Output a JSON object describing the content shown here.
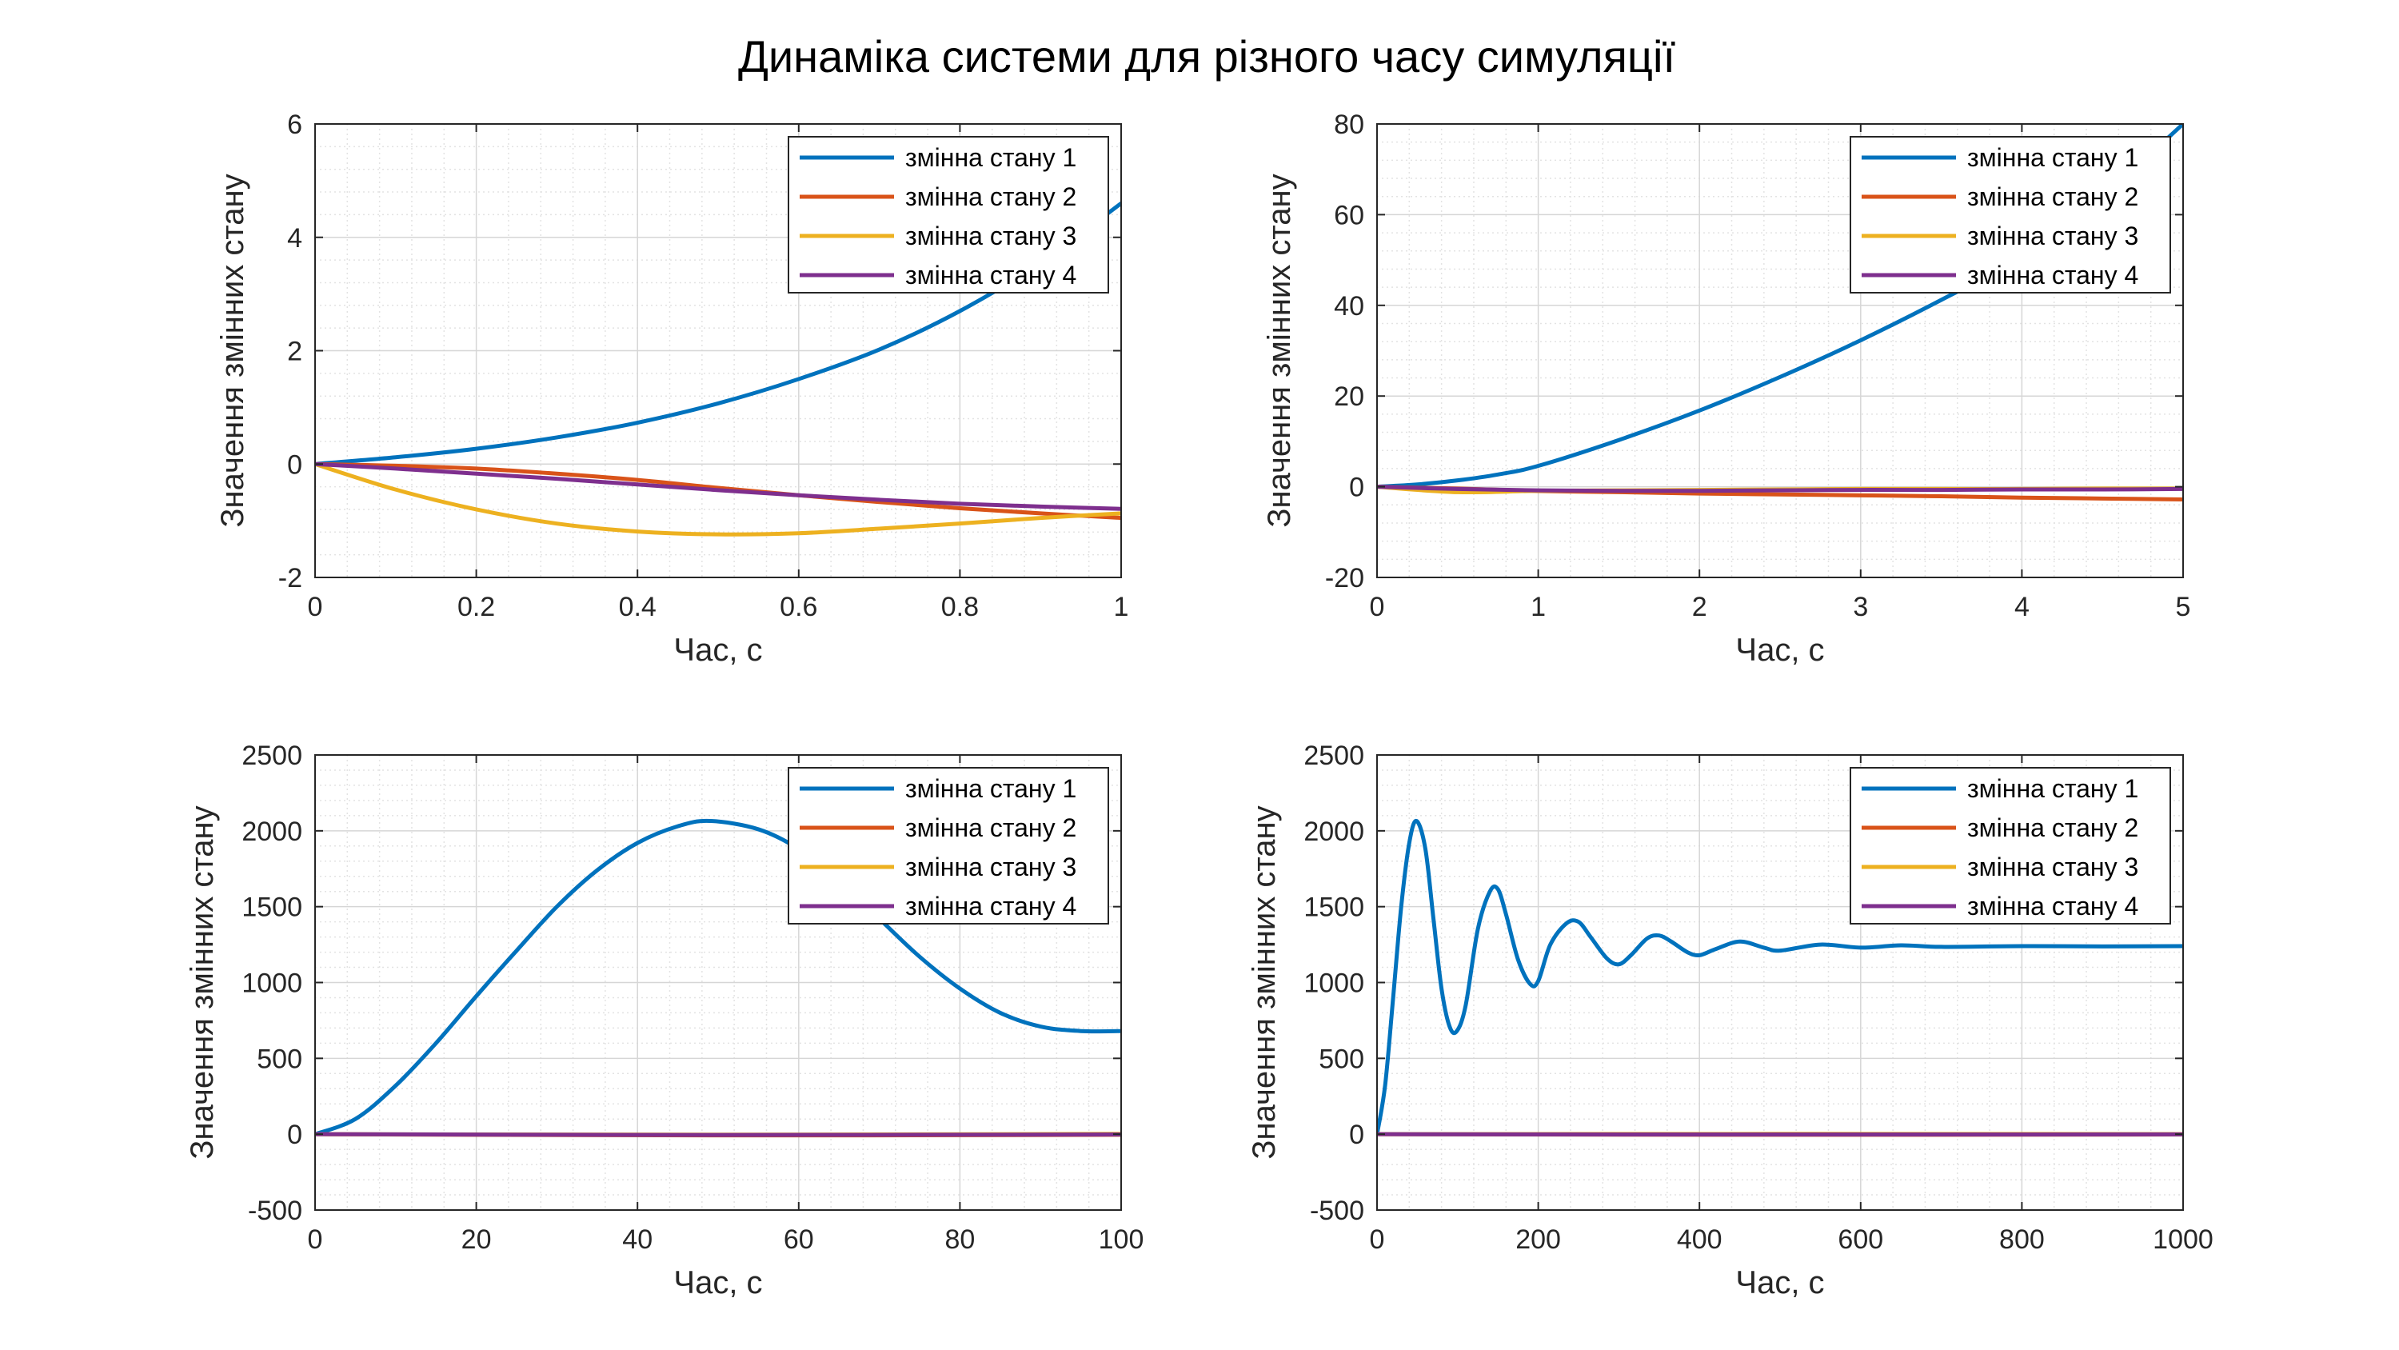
{
  "figure": {
    "title": "Динаміка системи для різного часу симуляції"
  },
  "colors": {
    "series": [
      "#0072BD",
      "#D95319",
      "#EDB120",
      "#7E2F8E"
    ]
  },
  "chart_data": [
    {
      "type": "line",
      "xlabel": "Час, с",
      "ylabel": "Значення змінних стану",
      "xlim": [
        0,
        1
      ],
      "ylim": [
        -2,
        6
      ],
      "xticks": [
        0,
        0.2,
        0.4,
        0.6,
        0.8,
        1
      ],
      "yticks": [
        -2,
        0,
        2,
        4,
        6
      ],
      "grid": true,
      "minor_grid": true,
      "legend_position": "top-right",
      "series": [
        {
          "name": "змінна стану 1",
          "x": [
            0,
            0.1,
            0.2,
            0.3,
            0.4,
            0.5,
            0.6,
            0.7,
            0.8,
            0.9,
            1.0
          ],
          "y": [
            0,
            0.12,
            0.27,
            0.47,
            0.73,
            1.07,
            1.5,
            2.02,
            2.7,
            3.55,
            4.6
          ]
        },
        {
          "name": "змінна стану 2",
          "x": [
            0,
            0.1,
            0.2,
            0.3,
            0.4,
            0.5,
            0.6,
            0.7,
            0.8,
            0.9,
            1.0
          ],
          "y": [
            0,
            -0.03,
            -0.08,
            -0.17,
            -0.28,
            -0.42,
            -0.55,
            -0.67,
            -0.78,
            -0.87,
            -0.95
          ]
        },
        {
          "name": "змінна стану 3",
          "x": [
            0,
            0.1,
            0.2,
            0.3,
            0.4,
            0.5,
            0.6,
            0.7,
            0.8,
            0.9,
            1.0
          ],
          "y": [
            0,
            -0.45,
            -0.8,
            -1.05,
            -1.19,
            -1.24,
            -1.22,
            -1.14,
            -1.05,
            -0.95,
            -0.87
          ]
        },
        {
          "name": "змінна стану 4",
          "x": [
            0,
            0.1,
            0.2,
            0.3,
            0.4,
            0.5,
            0.6,
            0.7,
            0.8,
            0.9,
            1.0
          ],
          "y": [
            0,
            -0.08,
            -0.17,
            -0.26,
            -0.36,
            -0.46,
            -0.55,
            -0.63,
            -0.7,
            -0.75,
            -0.79
          ]
        }
      ]
    },
    {
      "type": "line",
      "xlabel": "Час, с",
      "ylabel": "Значення змінних стану",
      "xlim": [
        0,
        5
      ],
      "ylim": [
        -20,
        80
      ],
      "xticks": [
        0,
        1,
        2,
        3,
        4,
        5
      ],
      "yticks": [
        -20,
        0,
        20,
        40,
        60,
        80
      ],
      "grid": true,
      "minor_grid": true,
      "legend_position": "top-right",
      "series": [
        {
          "name": "змінна стану 1",
          "x": [
            0,
            0.25,
            0.5,
            0.75,
            1,
            1.5,
            2,
            2.5,
            3,
            3.5,
            4,
            4.5,
            5
          ],
          "y": [
            0,
            0.5,
            1.4,
            2.7,
            4.6,
            10.3,
            16.8,
            24.2,
            32.3,
            41.2,
            50.8,
            64.0,
            80.0
          ]
        },
        {
          "name": "змінна стану 2",
          "x": [
            0,
            0.5,
            1,
            1.5,
            2,
            2.5,
            3,
            3.5,
            4,
            4.5,
            5
          ],
          "y": [
            0,
            -0.4,
            -0.95,
            -1.2,
            -1.5,
            -1.7,
            -1.9,
            -2.1,
            -2.4,
            -2.6,
            -2.8
          ]
        },
        {
          "name": "змінна стану 3",
          "x": [
            0,
            0.5,
            1,
            1.5,
            2,
            2.5,
            3,
            3.5,
            4,
            4.5,
            5
          ],
          "y": [
            0,
            -1.2,
            -0.9,
            -0.8,
            -0.7,
            -0.6,
            -0.5,
            -0.5,
            -0.5,
            -0.4,
            -0.4
          ]
        },
        {
          "name": "змінна стану 4",
          "x": [
            0,
            0.5,
            1,
            1.5,
            2,
            2.5,
            3,
            3.5,
            4,
            4.5,
            5
          ],
          "y": [
            0,
            -0.5,
            -0.8,
            -0.9,
            -0.9,
            -0.8,
            -0.7,
            -0.7,
            -0.6,
            -0.6,
            -0.5
          ]
        }
      ]
    },
    {
      "type": "line",
      "xlabel": "Час, с",
      "ylabel": "Значення змінних стану",
      "xlim": [
        0,
        100
      ],
      "ylim": [
        -500,
        2500
      ],
      "xticks": [
        0,
        20,
        40,
        60,
        80,
        100
      ],
      "yticks": [
        -500,
        0,
        500,
        1000,
        1500,
        2000,
        2500
      ],
      "grid": true,
      "minor_grid": true,
      "legend_position": "top-right",
      "series": [
        {
          "name": "змінна стану 1",
          "x": [
            0,
            5,
            10,
            15,
            20,
            25,
            30,
            35,
            40,
            45,
            49,
            55,
            60,
            65,
            70,
            75,
            80,
            85,
            90,
            95,
            100
          ],
          "y": [
            0,
            100,
            320,
            600,
            910,
            1210,
            1500,
            1740,
            1920,
            2030,
            2065,
            2010,
            1880,
            1670,
            1420,
            1170,
            960,
            800,
            710,
            680,
            680
          ]
        },
        {
          "name": "змінна стану 2",
          "x": [
            0,
            50,
            100
          ],
          "y": [
            0,
            -8,
            -4
          ]
        },
        {
          "name": "змінна стану 3",
          "x": [
            0,
            50,
            100
          ],
          "y": [
            0,
            -3,
            2
          ]
        },
        {
          "name": "змінна стану 4",
          "x": [
            0,
            50,
            100
          ],
          "y": [
            0,
            -5,
            -2
          ]
        }
      ]
    },
    {
      "type": "line",
      "xlabel": "Час, с",
      "ylabel": "Значення змінних стану",
      "xlim": [
        0,
        1000
      ],
      "ylim": [
        -500,
        2500
      ],
      "xticks": [
        0,
        200,
        400,
        600,
        800,
        1000
      ],
      "yticks": [
        -500,
        0,
        500,
        1000,
        1500,
        2000,
        2500
      ],
      "grid": true,
      "minor_grid": true,
      "legend_position": "top-right",
      "series": [
        {
          "name": "змінна стану 1",
          "x": [
            0,
            10,
            20,
            30,
            40,
            49,
            60,
            70,
            80,
            90,
            99,
            110,
            125,
            140,
            150,
            160,
            175,
            190,
            200,
            215,
            235,
            250,
            265,
            285,
            300,
            315,
            335,
            350,
            365,
            385,
            400,
            420,
            450,
            480,
            500,
            550,
            600,
            650,
            700,
            800,
            900,
            1000
          ],
          "y": [
            0,
            320,
            900,
            1500,
            1920,
            2065,
            1880,
            1420,
            960,
            710,
            680,
            850,
            1350,
            1600,
            1615,
            1450,
            1150,
            990,
            1010,
            1250,
            1390,
            1400,
            1300,
            1160,
            1120,
            1180,
            1290,
            1310,
            1270,
            1200,
            1180,
            1220,
            1270,
            1230,
            1210,
            1250,
            1230,
            1245,
            1235,
            1240,
            1238,
            1240
          ]
        },
        {
          "name": "змінна стану 2",
          "x": [
            0,
            500,
            1000
          ],
          "y": [
            0,
            -4,
            -2
          ]
        },
        {
          "name": "змінна стану 3",
          "x": [
            0,
            500,
            1000
          ],
          "y": [
            0,
            2,
            1
          ]
        },
        {
          "name": "змінна стану 4",
          "x": [
            0,
            500,
            1000
          ],
          "y": [
            0,
            -2,
            -1
          ]
        }
      ]
    }
  ]
}
